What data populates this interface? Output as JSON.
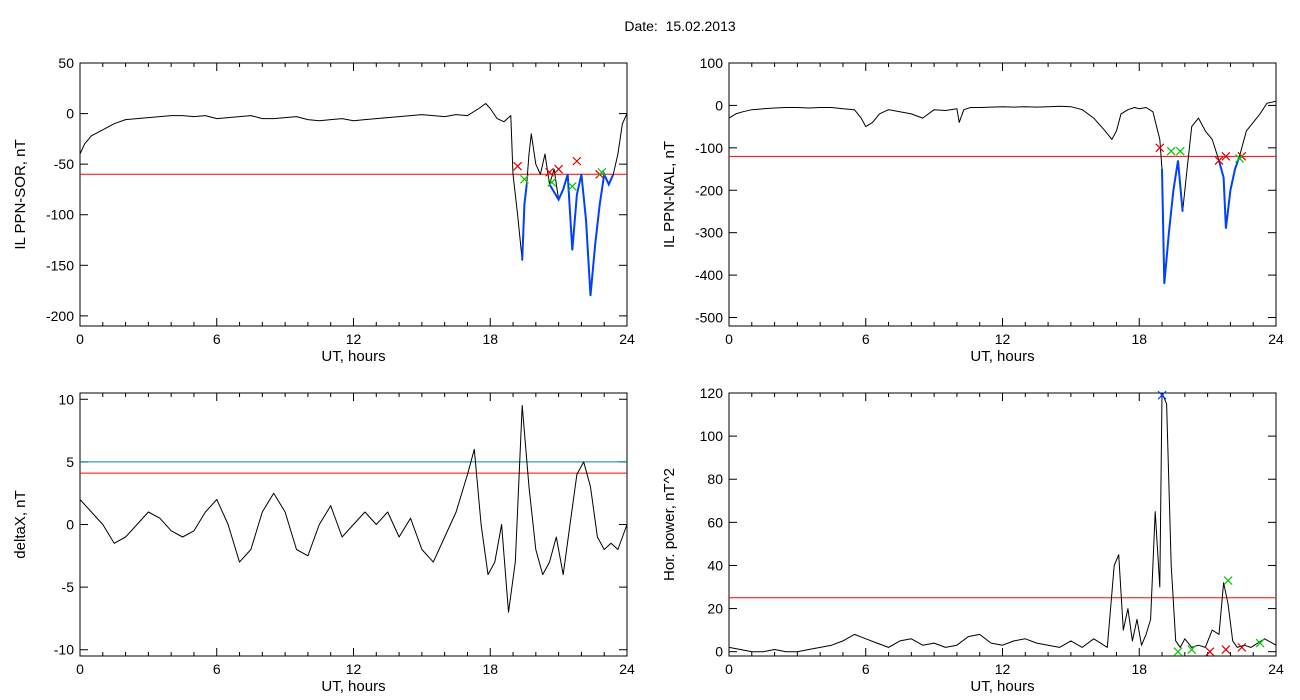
{
  "header": {
    "date_label": "Date:",
    "date_value": "15.02.2013"
  },
  "colors": {
    "signal": "#000000",
    "threshold_red": "#ff0000",
    "threshold_teal": "#008b8b",
    "highlight_blue": "#0040ff",
    "marker_red": "#dd0000",
    "marker_green": "#00c800"
  },
  "chart_data": [
    {
      "type": "line",
      "ylabel": "IL PPN-SOR, nT",
      "xlabel": "UT, hours",
      "xlim": [
        0,
        24
      ],
      "ylim": [
        -210,
        50
      ],
      "xticks": [
        "0",
        "6",
        "12",
        "18",
        "24"
      ],
      "yticks": [
        "50",
        "0",
        "-50",
        "-100",
        "-150",
        "-200"
      ],
      "ytick_values": [
        50,
        0,
        -50,
        -100,
        -150,
        -200
      ],
      "thresholds": [
        {
          "value": -60,
          "color": "red"
        }
      ],
      "series": [
        {
          "x": [
            0,
            0.2,
            0.5,
            1,
            1.5,
            2,
            2.5,
            3,
            3.5,
            4,
            4.5,
            5,
            5.5,
            6,
            6.5,
            7,
            7.5,
            8,
            8.5,
            9,
            9.5,
            10,
            10.5,
            11,
            11.5,
            12,
            12.5,
            13,
            13.5,
            14,
            14.5,
            15,
            15.5,
            16,
            16.5,
            17,
            17.5,
            17.8,
            18,
            18.3,
            18.6,
            18.9,
            19,
            19.2,
            19.4,
            19.5,
            19.6,
            19.7,
            19.8,
            20,
            20.2,
            20.4,
            20.6,
            20.8,
            21,
            21.2,
            21.4,
            21.6,
            21.8,
            22,
            22.2,
            22.4,
            22.6,
            22.8,
            23,
            23.2,
            23.4,
            23.6,
            23.8,
            24
          ],
          "y": [
            -40,
            -30,
            -22,
            -16,
            -10,
            -6,
            -5,
            -4,
            -3,
            -2,
            -2,
            -3,
            -2,
            -5,
            -4,
            -3,
            -2,
            -5,
            -5,
            -4,
            -3,
            -6,
            -7,
            -6,
            -5,
            -7,
            -6,
            -5,
            -4,
            -3,
            -2,
            -1,
            -2,
            -3,
            -1,
            -2,
            5,
            10,
            5,
            -5,
            -8,
            -2,
            -60,
            -100,
            -145,
            -90,
            -70,
            -40,
            -20,
            -50,
            -60,
            -40,
            -70,
            -55,
            -85,
            -75,
            -60,
            -135,
            -80,
            -60,
            -105,
            -180,
            -130,
            -90,
            -60,
            -70,
            -60,
            -40,
            -10,
            0
          ]
        }
      ],
      "highlight_x_ranges": [
        [
          19.3,
          20.1
        ],
        [
          20.5,
          23.5
        ]
      ],
      "markers_red": [
        [
          19.2,
          -52
        ],
        [
          20.6,
          -58
        ],
        [
          21.0,
          -55
        ],
        [
          21.8,
          -47
        ],
        [
          22.8,
          -60
        ]
      ],
      "markers_green": [
        [
          19.5,
          -65
        ],
        [
          20.7,
          -68
        ],
        [
          21.6,
          -72
        ],
        [
          22.9,
          -58
        ]
      ]
    },
    {
      "type": "line",
      "ylabel": "IL PPN-NAL, nT",
      "xlabel": "UT, hours",
      "xlim": [
        0,
        24
      ],
      "ylim": [
        -520,
        100
      ],
      "xticks": [
        "0",
        "6",
        "12",
        "18",
        "24"
      ],
      "yticks": [
        "100",
        "0",
        "-100",
        "-200",
        "-300",
        "-400",
        "-500"
      ],
      "ytick_values": [
        100,
        0,
        -100,
        -200,
        -300,
        -400,
        -500
      ],
      "thresholds": [
        {
          "value": -120,
          "color": "red"
        }
      ],
      "series": [
        {
          "x": [
            0,
            0.3,
            0.6,
            1,
            1.5,
            2,
            2.5,
            3,
            3.5,
            4,
            4.5,
            5,
            5.5,
            5.8,
            6,
            6.3,
            6.6,
            7,
            7.5,
            8,
            8.5,
            9,
            9.5,
            10,
            10.1,
            10.3,
            10.6,
            11,
            11.5,
            12,
            12.5,
            13,
            13.5,
            14,
            14.5,
            15,
            15.5,
            16,
            16.5,
            16.8,
            17,
            17.2,
            17.5,
            17.8,
            18,
            18.3,
            18.6,
            18.9,
            19,
            19.1,
            19.3,
            19.5,
            19.7,
            19.9,
            20.1,
            20.3,
            20.6,
            20.9,
            21.2,
            21.5,
            21.7,
            21.8,
            22,
            22.2,
            22.4,
            22.7,
            23,
            23.3,
            23.6,
            24
          ],
          "y": [
            -30,
            -20,
            -15,
            -10,
            -8,
            -6,
            -5,
            -5,
            -6,
            -5,
            -5,
            -8,
            -10,
            -30,
            -50,
            -40,
            -20,
            -10,
            -15,
            -20,
            -30,
            -10,
            -12,
            -8,
            -40,
            -10,
            -5,
            -5,
            -4,
            -3,
            -4,
            -3,
            -4,
            -3,
            -2,
            -3,
            -10,
            -30,
            -60,
            -80,
            -60,
            -20,
            -10,
            -5,
            -8,
            -5,
            -15,
            -80,
            -150,
            -420,
            -300,
            -200,
            -130,
            -250,
            -150,
            -50,
            -30,
            -60,
            -80,
            -130,
            -170,
            -290,
            -200,
            -150,
            -120,
            -60,
            -40,
            -20,
            5,
            10
          ]
        }
      ],
      "highlight_x_ranges": [
        [
          18.9,
          19.9
        ],
        [
          21.4,
          22.6
        ]
      ],
      "markers_red": [
        [
          18.9,
          -100
        ],
        [
          21.5,
          -130
        ],
        [
          21.8,
          -120
        ],
        [
          22.5,
          -120
        ]
      ],
      "markers_green": [
        [
          19.4,
          -108
        ],
        [
          19.8,
          -108
        ],
        [
          22.4,
          -125
        ]
      ]
    },
    {
      "type": "line",
      "ylabel": "deltaX, nT",
      "xlabel": "UT, hours",
      "xlim": [
        0,
        24
      ],
      "ylim": [
        -10.5,
        10.5
      ],
      "xticks": [
        "0",
        "6",
        "12",
        "18",
        "24"
      ],
      "yticks": [
        "10",
        "5",
        "0",
        "-5",
        "-10"
      ],
      "ytick_values": [
        10,
        5,
        0,
        -5,
        -10
      ],
      "thresholds": [
        {
          "value": 5,
          "color": "teal"
        },
        {
          "value": 4.1,
          "color": "red"
        }
      ],
      "series": [
        {
          "x": [
            0,
            0.5,
            1,
            1.5,
            2,
            2.5,
            3,
            3.5,
            4,
            4.5,
            5,
            5.5,
            6,
            6.5,
            7,
            7.5,
            8,
            8.5,
            9,
            9.5,
            10,
            10.5,
            11,
            11.5,
            12,
            12.5,
            13,
            13.5,
            14,
            14.5,
            15,
            15.5,
            16,
            16.5,
            17,
            17.3,
            17.6,
            17.9,
            18.2,
            18.5,
            18.8,
            19.1,
            19.4,
            19.7,
            20,
            20.3,
            20.6,
            20.9,
            21.2,
            21.5,
            21.8,
            22.1,
            22.4,
            22.7,
            23,
            23.3,
            23.6,
            24
          ],
          "y": [
            2,
            1,
            0,
            -1.5,
            -1,
            0,
            1,
            0.5,
            -0.5,
            -1,
            -0.5,
            1,
            2,
            0,
            -3,
            -2,
            1,
            2.5,
            1,
            -2,
            -2.5,
            0,
            1.5,
            -1,
            0,
            1,
            0,
            1,
            -1,
            0.5,
            -2,
            -3,
            -1,
            1,
            4,
            6,
            0,
            -4,
            -3,
            0,
            -7,
            -3,
            9.5,
            3,
            -2,
            -4,
            -3,
            -1,
            -4,
            0,
            4,
            5,
            3,
            -1,
            -2,
            -1.5,
            -2,
            0
          ]
        }
      ]
    },
    {
      "type": "line",
      "ylabel": "Hor. power, nT^2",
      "xlabel": "UT, hours",
      "xlim": [
        0,
        24
      ],
      "ylim": [
        -2,
        120
      ],
      "xticks": [
        "0",
        "6",
        "12",
        "18",
        "24"
      ],
      "yticks": [
        "120",
        "100",
        "80",
        "60",
        "40",
        "20",
        "0"
      ],
      "ytick_values": [
        120,
        100,
        80,
        60,
        40,
        20,
        0
      ],
      "thresholds": [
        {
          "value": 25,
          "color": "red"
        }
      ],
      "series": [
        {
          "x": [
            0,
            0.5,
            1,
            1.5,
            2,
            2.5,
            3,
            3.5,
            4,
            4.5,
            5,
            5.5,
            6,
            6.5,
            7,
            7.5,
            8,
            8.5,
            9,
            9.5,
            10,
            10.5,
            11,
            11.5,
            12,
            12.5,
            13,
            13.5,
            14,
            14.5,
            15,
            15.5,
            16,
            16.3,
            16.6,
            16.9,
            17.1,
            17.3,
            17.5,
            17.7,
            17.9,
            18.1,
            18.3,
            18.5,
            18.7,
            18.9,
            19,
            19.2,
            19.4,
            19.6,
            19.8,
            20,
            20.3,
            20.6,
            20.9,
            21.2,
            21.5,
            21.7,
            21.9,
            22.1,
            22.3,
            22.6,
            22.9,
            23.2,
            23.5,
            24
          ],
          "y": [
            2,
            1,
            0,
            0,
            1,
            0,
            0,
            1,
            2,
            3,
            5,
            8,
            6,
            4,
            2,
            5,
            6,
            3,
            4,
            2,
            3,
            7,
            8,
            4,
            3,
            5,
            6,
            4,
            3,
            2,
            5,
            2,
            6,
            4,
            2,
            40,
            45,
            10,
            20,
            5,
            15,
            3,
            8,
            15,
            65,
            30,
            120,
            115,
            40,
            5,
            2,
            6,
            2,
            3,
            2,
            10,
            8,
            32,
            22,
            5,
            2,
            3,
            2,
            4,
            6,
            3
          ]
        }
      ],
      "markers_red": [
        [
          21.1,
          0
        ],
        [
          21.8,
          1
        ],
        [
          22.5,
          2
        ]
      ],
      "markers_green": [
        [
          19.7,
          0
        ],
        [
          20.3,
          1
        ],
        [
          21.9,
          33
        ],
        [
          23.3,
          4
        ]
      ],
      "markers_blue": [
        [
          19,
          119
        ]
      ]
    }
  ]
}
